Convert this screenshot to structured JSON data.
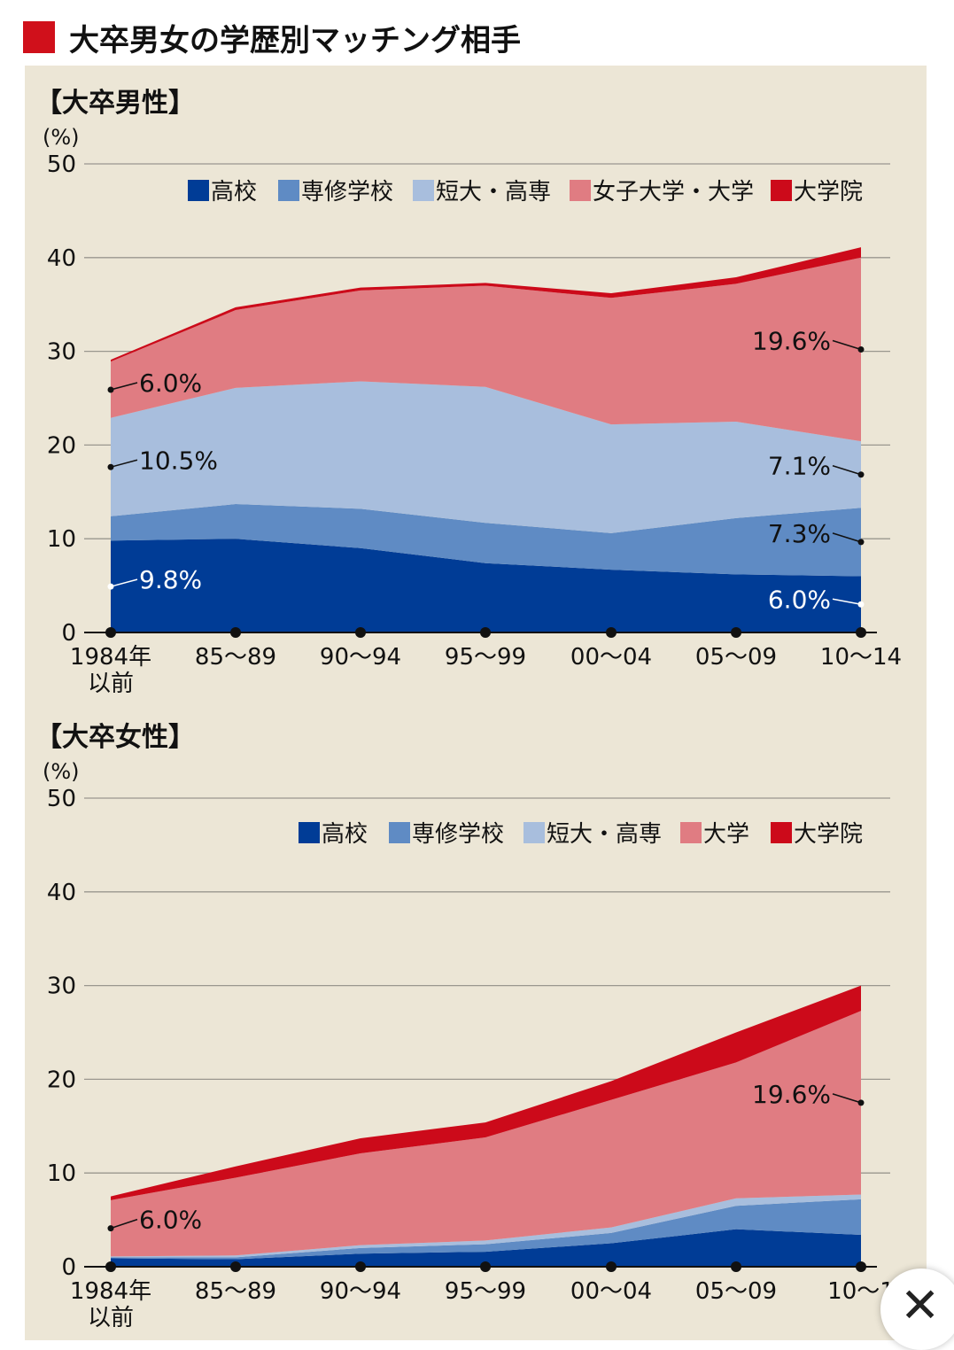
{
  "title": "大卒男女の学歴別マッチング相手",
  "close_icon": "close-icon",
  "colors": {
    "high_school": "#003c96",
    "vocational": "#5f8bc4",
    "junior_college": "#a8bedd",
    "university": "#e07c82",
    "graduate": "#cc0a1a",
    "panel": "#ece6d6"
  },
  "chart_data": [
    {
      "type": "area",
      "stacked": true,
      "title": "【大卒男性】",
      "unit": "(%)",
      "categories": [
        "1984年\n以前",
        "85～89",
        "90～94",
        "95～99",
        "00～04",
        "05～09",
        "10～14"
      ],
      "ylim": [
        0,
        50
      ],
      "yticks": [
        0,
        10,
        20,
        30,
        40,
        50
      ],
      "grid": true,
      "legend_position": "top-right",
      "series": [
        {
          "name": "高校",
          "color": "#003c96",
          "values": [
            9.8,
            10.0,
            9.0,
            7.4,
            6.7,
            6.2,
            6.0
          ]
        },
        {
          "name": "専修学校",
          "color": "#5f8bc4",
          "values": [
            2.6,
            3.7,
            4.2,
            4.3,
            3.9,
            6.0,
            7.3
          ]
        },
        {
          "name": "短大・高専",
          "color": "#a8bedd",
          "values": [
            10.5,
            12.4,
            13.6,
            14.5,
            11.6,
            10.3,
            7.1
          ]
        },
        {
          "name": "女子大学・大学",
          "color": "#e07c82",
          "values": [
            6.0,
            8.3,
            9.7,
            10.8,
            13.5,
            14.7,
            19.6
          ]
        },
        {
          "name": "大学院",
          "color": "#cc0a1a",
          "values": [
            0.2,
            0.3,
            0.3,
            0.3,
            0.5,
            0.7,
            1.1
          ]
        }
      ],
      "annotations": [
        {
          "series": 0,
          "index": 0,
          "label": "9.8%"
        },
        {
          "series": 2,
          "index": 0,
          "label": "10.5%"
        },
        {
          "series": 3,
          "index": 0,
          "label": "6.0%"
        },
        {
          "series": 0,
          "index": 6,
          "label": "6.0%"
        },
        {
          "series": 1,
          "index": 6,
          "label": "7.3%"
        },
        {
          "series": 2,
          "index": 6,
          "label": "7.1%"
        },
        {
          "series": 3,
          "index": 6,
          "label": "19.6%"
        }
      ]
    },
    {
      "type": "area",
      "stacked": true,
      "title": "【大卒女性】",
      "unit": "(%)",
      "categories": [
        "1984年\n以前",
        "85～89",
        "90～94",
        "95～99",
        "00～04",
        "05～09",
        "10～1"
      ],
      "ylim": [
        0,
        50
      ],
      "yticks": [
        0,
        10,
        20,
        30,
        40,
        50
      ],
      "grid": true,
      "legend_position": "top-right",
      "series": [
        {
          "name": "高校",
          "color": "#003c96",
          "values": [
            0.9,
            0.8,
            1.4,
            1.6,
            2.5,
            4.0,
            3.4
          ]
        },
        {
          "name": "専修学校",
          "color": "#5f8bc4",
          "values": [
            0.1,
            0.2,
            0.6,
            0.8,
            1.1,
            2.5,
            3.8
          ]
        },
        {
          "name": "短大・高専",
          "color": "#a8bedd",
          "values": [
            0.1,
            0.2,
            0.3,
            0.4,
            0.6,
            0.8,
            0.5
          ]
        },
        {
          "name": "大学",
          "color": "#e07c82",
          "values": [
            6.0,
            8.3,
            9.8,
            11.0,
            13.6,
            14.5,
            19.6
          ]
        },
        {
          "name": "大学院",
          "color": "#cc0a1a",
          "values": [
            0.4,
            1.2,
            1.6,
            1.6,
            2.0,
            3.2,
            2.7
          ]
        }
      ],
      "annotations": [
        {
          "series": 3,
          "index": 0,
          "label": "6.0%"
        },
        {
          "series": 3,
          "index": 6,
          "label": "19.6%"
        }
      ]
    }
  ]
}
